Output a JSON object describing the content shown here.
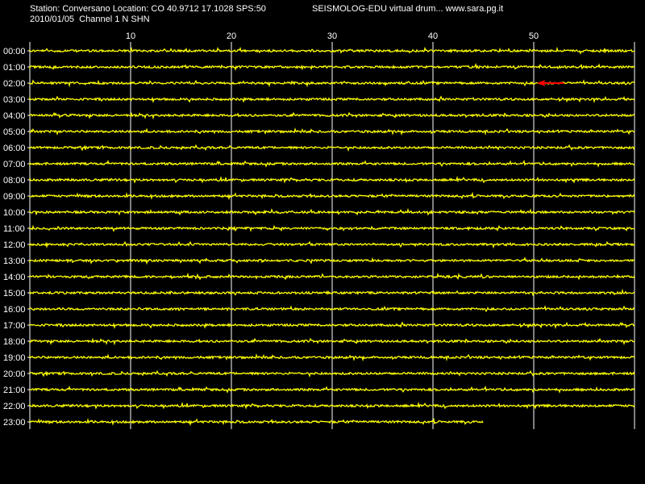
{
  "header": {
    "station_line": "Station: Conversano Location: CO 40.9712 17.1028 SPS:50",
    "date_line": "2010/01/05  Channel 1 N SHN",
    "credit_line": "SEISMOLOG-EDU virtual drum... www.sara.pg.it"
  },
  "colors": {
    "background": "#000000",
    "trace": "#ffff00",
    "event": "#ff0000",
    "grid": "#ffffff",
    "text": "#ffffff"
  },
  "chart_data": {
    "type": "line",
    "title": "",
    "xlabel": "",
    "ylabel": "",
    "xlim": [
      0,
      60
    ],
    "x_ticks": [
      10,
      20,
      30,
      40,
      50
    ],
    "grid": true,
    "rows": [
      "00:00",
      "01:00",
      "02:00",
      "03:00",
      "04:00",
      "05:00",
      "06:00",
      "07:00",
      "08:00",
      "09:00",
      "10:00",
      "11:00",
      "12:00",
      "13:00",
      "14:00",
      "15:00",
      "16:00",
      "17:00",
      "18:00",
      "19:00",
      "20:00",
      "21:00",
      "22:00",
      "23:00"
    ],
    "row_extent_minutes": [
      60,
      60,
      60,
      60,
      60,
      60,
      60,
      60,
      60,
      60,
      60,
      60,
      60,
      60,
      60,
      60,
      60,
      60,
      60,
      60,
      60,
      60,
      60,
      45
    ],
    "events": [
      {
        "row": "02:00",
        "start_minute": 50.5,
        "end_minute": 53
      }
    ]
  }
}
